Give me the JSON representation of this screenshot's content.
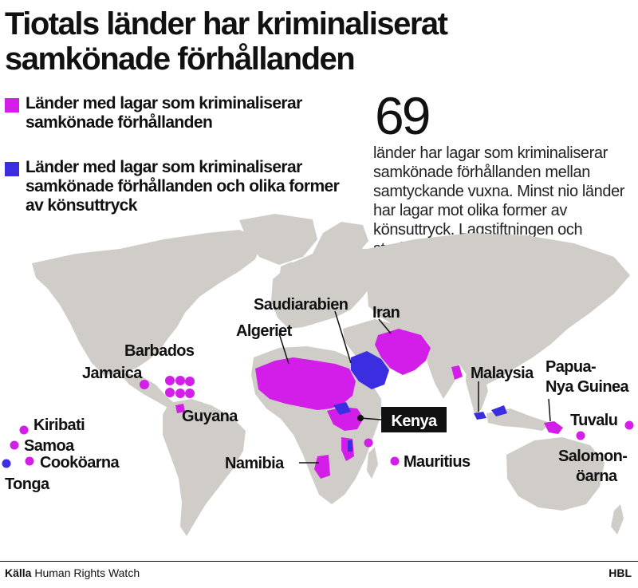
{
  "title": "Tiotals länder har kriminaliserat samkönade förhållanden",
  "legend": [
    {
      "label": "Länder med lagar som kriminaliserar samkönade förhållanden",
      "color": "#d21ee8"
    },
    {
      "label": "Länder med lagar som kriminaliserar samkönade förhållanden och olika former av könsuttryck",
      "color": "#3a2ee0"
    }
  ],
  "stat": {
    "number": "69",
    "text": "länder har lagar som kriminaliserar samkönade förhållanden mellan samtyckande vuxna. Minst nio länder har lagar mot olika former av könsuttryck. Lagstiftningen och straffskalan varierar mycket."
  },
  "labels": {
    "saudiarabien": "Saudiarabien",
    "iran": "Iran",
    "algeriet": "Algeriet",
    "barbados": "Barbados",
    "jamaica": "Jamaica",
    "guyana": "Guyana",
    "malaysia": "Malaysia",
    "papua": "Papua-Nya Guinea",
    "tuvalu": "Tuvalu",
    "salomon": "Salomon-öarna",
    "kenya": "Kenya",
    "kiribati": "Kiribati",
    "samoa": "Samoa",
    "cook": "Cooköarna",
    "tonga": "Tonga",
    "namibia": "Namibia",
    "mauritius": "Mauritius"
  },
  "colors": {
    "land": "#d0cdc8",
    "magenta": "#d21ee8",
    "blue": "#3a2ee0",
    "kenya_bg": "#111111"
  },
  "footer": {
    "source_label": "Källa",
    "source": "Human Rights Watch",
    "brand": "HBL"
  }
}
